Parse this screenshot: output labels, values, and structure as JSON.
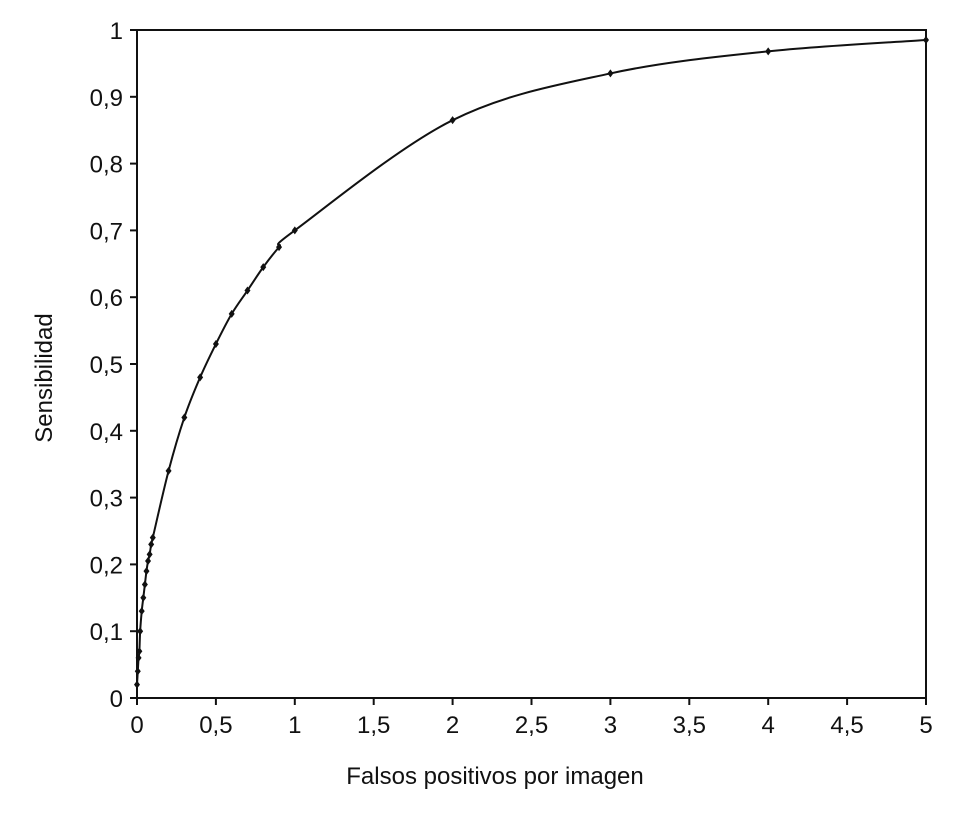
{
  "chart_data": {
    "type": "line",
    "title": "",
    "xlabel": "Falsos positivos por imagen",
    "ylabel": "Sensibilidad",
    "xlim": [
      0,
      5
    ],
    "ylim": [
      0,
      1
    ],
    "x_ticks": [
      0,
      0.5,
      1,
      1.5,
      2,
      2.5,
      3,
      3.5,
      4,
      4.5,
      5
    ],
    "x_tick_labels": [
      "0",
      "0,5",
      "1",
      "1,5",
      "2",
      "2,5",
      "3",
      "3,5",
      "4",
      "4,5",
      "5"
    ],
    "y_ticks": [
      0,
      0.1,
      0.2,
      0.3,
      0.4,
      0.5,
      0.6,
      0.7,
      0.8,
      0.9,
      1
    ],
    "y_tick_labels": [
      "0",
      "0,1",
      "0,2",
      "0,3",
      "0,4",
      "0,5",
      "0,6",
      "0,7",
      "0,8",
      "0,9",
      "1"
    ],
    "grid": false,
    "legend": "none",
    "line_color": "#111111",
    "series": [
      {
        "values_x": [
          0,
          0.005,
          0.01,
          0.015,
          0.02,
          0.03,
          0.04,
          0.05,
          0.06,
          0.07,
          0.08,
          0.09,
          0.1,
          0.2,
          0.3,
          0.4,
          0.5,
          0.6,
          0.7,
          0.8,
          0.9,
          1,
          2,
          3,
          4,
          5
        ],
        "values_y": [
          0.02,
          0.04,
          0.06,
          0.07,
          0.1,
          0.13,
          0.15,
          0.17,
          0.19,
          0.205,
          0.215,
          0.23,
          0.24,
          0.34,
          0.42,
          0.48,
          0.53,
          0.575,
          0.61,
          0.645,
          0.675,
          0.7,
          0.865,
          0.935,
          0.968,
          0.985
        ]
      }
    ]
  }
}
